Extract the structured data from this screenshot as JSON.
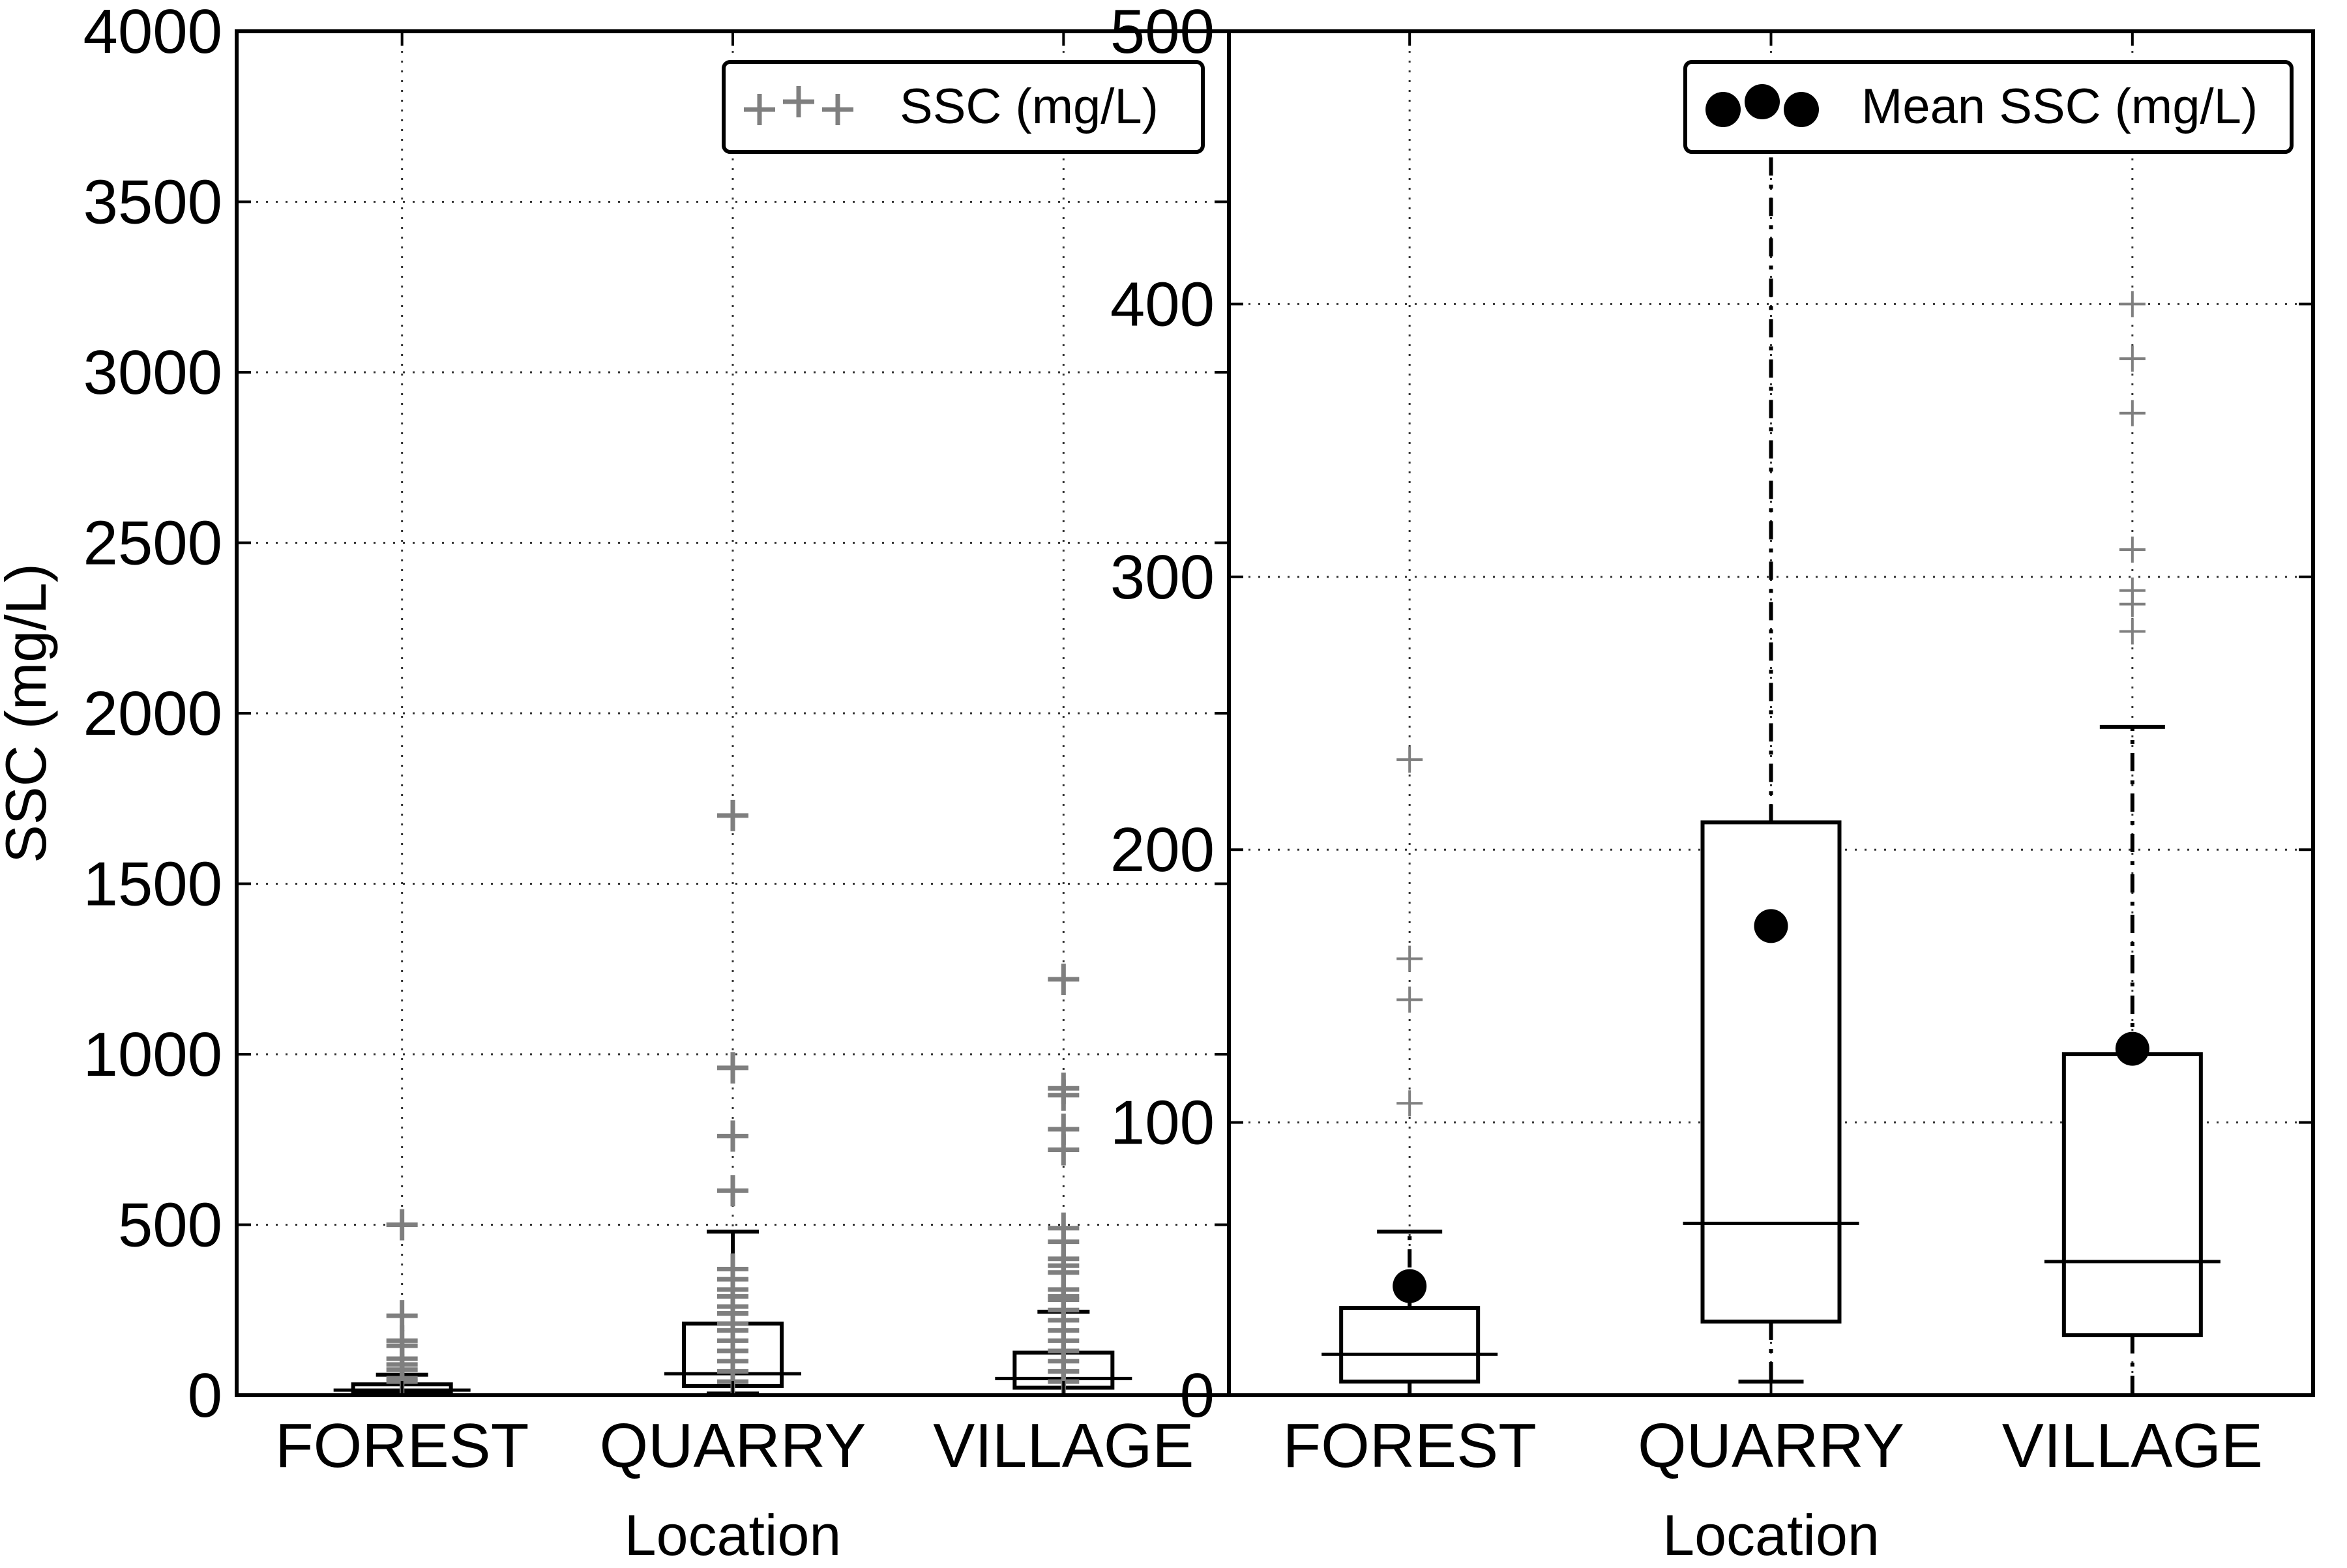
{
  "chart_data": [
    {
      "type": "box",
      "title": "",
      "xlabel": "Location",
      "ylabel": "SSC (mg/L)",
      "ylim": [
        0,
        4000
      ],
      "yticks": [
        0,
        500,
        1000,
        1500,
        2000,
        2500,
        3000,
        3500,
        4000
      ],
      "grid": true,
      "legend": {
        "placement": "top-right",
        "entries": [
          {
            "label": "SSC (mg/L)",
            "marker": "plus",
            "color": "#7f7f7f"
          }
        ]
      },
      "categories": [
        "FOREST",
        "QUARRY",
        "VILLAGE"
      ],
      "boxes": [
        {
          "category": "FOREST",
          "whisker_low": 0,
          "q1": 5,
          "median": 15,
          "q3": 32,
          "whisker_high": 60,
          "outliers": [
            107,
            145,
            160,
            233,
            500,
            75,
            90,
            40,
            50
          ]
        },
        {
          "category": "QUARRY",
          "whisker_low": 5,
          "q1": 27,
          "median": 63,
          "q3": 210,
          "whisker_high": 480,
          "outliers": [
            1700,
            960,
            760,
            600,
            370,
            340,
            310,
            290,
            260,
            240,
            210,
            190,
            160,
            130,
            100,
            70,
            40
          ]
        },
        {
          "category": "VILLAGE",
          "whisker_low": 0,
          "q1": 22,
          "median": 49,
          "q3": 125,
          "whisker_high": 245,
          "outliers": [
            1220,
            900,
            880,
            780,
            720,
            490,
            450,
            400,
            380,
            360,
            310,
            290,
            280,
            250,
            220,
            190,
            160,
            130,
            100,
            70,
            40
          ]
        }
      ]
    },
    {
      "type": "box",
      "title": "",
      "xlabel": "Location",
      "ylabel": "",
      "ylim": [
        0,
        500
      ],
      "yticks": [
        0,
        100,
        200,
        300,
        400,
        500
      ],
      "grid": true,
      "legend": {
        "placement": "top-right",
        "entries": [
          {
            "label": "Mean SSC (mg/L)",
            "marker": "circle",
            "color": "#000000"
          }
        ]
      },
      "categories": [
        "FOREST",
        "QUARRY",
        "VILLAGE"
      ],
      "boxes": [
        {
          "category": "FOREST",
          "whisker_low": 0,
          "q1": 5,
          "median": 15,
          "q3": 32,
          "whisker_high": 60,
          "mean": 40,
          "outliers": [
            107,
            145,
            160,
            233
          ]
        },
        {
          "category": "QUARRY",
          "whisker_low": 5,
          "q1": 27,
          "median": 63,
          "q3": 210,
          "whisker_high": 480,
          "mean": 172,
          "outliers": []
        },
        {
          "category": "VILLAGE",
          "whisker_low": 0,
          "q1": 22,
          "median": 49,
          "q3": 125,
          "whisker_high": 245,
          "mean": 127,
          "outliers": [
            280,
            290,
            295,
            310,
            360,
            380,
            400
          ]
        }
      ]
    }
  ]
}
